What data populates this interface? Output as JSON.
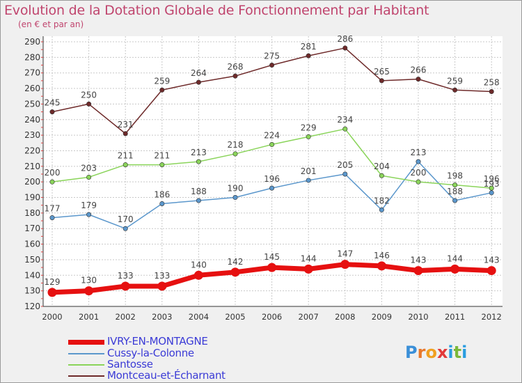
{
  "title": "Evolution de la Dotation Globale de Fonctionnement par Habitant",
  "subtitle": "(en € et par an)",
  "colors": {
    "title": "#c0456e",
    "legend_text": "#3b3bd6",
    "grid": "#c8c8c8",
    "background": "#f0f0f0"
  },
  "logo": {
    "text": "Proxiti",
    "letters": [
      "P",
      "r",
      "o",
      "x",
      "i",
      "t",
      "i"
    ],
    "colors": [
      "#3a8fd8",
      "#e8782a",
      "#f0a020",
      "#e23a3a",
      "#2a9de0",
      "#7ab83a",
      "#2a9de0"
    ]
  },
  "chart_data": {
    "type": "line",
    "title": "Evolution de la Dotation Globale de Fonctionnement par Habitant",
    "subtitle": "(en € et par an)",
    "x": [
      2000,
      2001,
      2002,
      2003,
      2004,
      2005,
      2006,
      2007,
      2008,
      2009,
      2010,
      2011,
      2012
    ],
    "xlabel": "",
    "ylabel": "",
    "ylim": [
      120,
      290
    ],
    "yticks": [
      120,
      130,
      140,
      150,
      160,
      170,
      180,
      190,
      200,
      210,
      220,
      230,
      240,
      250,
      260,
      270,
      280,
      290
    ],
    "grid": true,
    "legend_position": "bottom-left",
    "series": [
      {
        "name": "IVRY-EN-MONTAGNE",
        "color": "#e61010",
        "emphasis": true,
        "values": [
          129,
          130,
          133,
          133,
          140,
          142,
          145,
          144,
          147,
          146,
          143,
          144,
          143
        ],
        "labels": [
          "129",
          "130",
          "133",
          "133",
          "140",
          "142",
          "145",
          "144",
          "147",
          "146",
          "143",
          "144",
          "143"
        ]
      },
      {
        "name": "Cussy-la-Colonne",
        "color": "#5b97cc",
        "emphasis": false,
        "values": [
          177,
          179,
          170,
          186,
          188,
          190,
          196,
          201,
          205,
          182,
          213,
          188,
          193
        ],
        "labels": [
          "177",
          "179",
          "170",
          "186",
          "188",
          "190",
          "196",
          "201",
          "205",
          "182",
          "213",
          "188",
          "193"
        ]
      },
      {
        "name": "Santosse",
        "color": "#8ad45a",
        "emphasis": false,
        "values": [
          200,
          203,
          211,
          211,
          213,
          218,
          224,
          229,
          234,
          204,
          200,
          198,
          196
        ],
        "labels": [
          "200",
          "203",
          "211",
          "211",
          "213",
          "218",
          "224",
          "229",
          "234",
          "204",
          "200",
          "198",
          "196"
        ]
      },
      {
        "name": "Montceau-et-Écharnant",
        "color": "#6e2a2a",
        "emphasis": false,
        "values": [
          245,
          250,
          231,
          259,
          264,
          268,
          275,
          281,
          286,
          265,
          266,
          259,
          258
        ],
        "labels": [
          "245",
          "250",
          "231",
          "259",
          "264",
          "268",
          "275",
          "281",
          "286",
          "265",
          "266",
          "259",
          "258"
        ]
      }
    ]
  }
}
